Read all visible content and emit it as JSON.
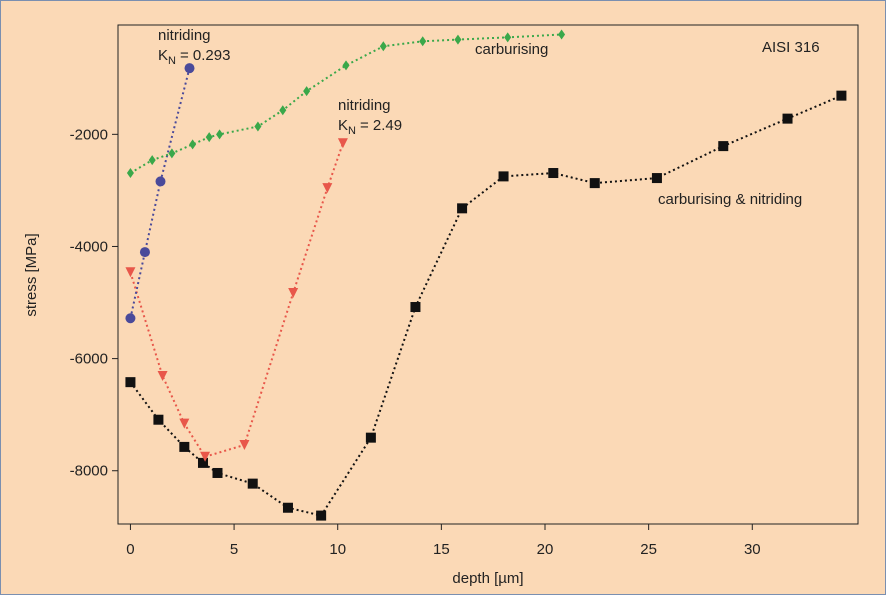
{
  "chart_data": {
    "type": "line",
    "title": "AISI 316",
    "x_label": "depth [µm]",
    "y_label": "stress [MPa]",
    "xlim": [
      -0.6,
      35.1
    ],
    "ylim": [
      -8950,
      -50
    ],
    "xticks": [
      0,
      5,
      10,
      15,
      20,
      25,
      30
    ],
    "yticks": [
      -8000,
      -6000,
      -4000,
      -2000
    ],
    "series": [
      {
        "name": "carburising & nitriding",
        "color": "#111111",
        "marker": "square",
        "x": [
          0,
          1.35,
          2.6,
          3.5,
          4.2,
          5.9,
          7.6,
          9.2,
          11.6,
          13.75,
          16.0,
          18.0,
          20.4,
          22.4,
          25.4,
          28.6,
          31.7,
          34.3
        ],
        "values": [
          -6420,
          -7090,
          -7575,
          -7860,
          -8040,
          -8230,
          -8660,
          -8800,
          -7410,
          -5080,
          -3320,
          -2750,
          -2690,
          -2870,
          -2780,
          -2210,
          -1720,
          -1310
        ]
      },
      {
        "name": "nitriding",
        "label_k": "K",
        "label_sub": "N",
        "label_rest": "= 2.49",
        "color": "#e8574a",
        "marker": "triangle-down",
        "x": [
          0,
          1.55,
          2.6,
          3.6,
          5.5,
          7.85,
          9.5,
          10.25
        ],
        "values": [
          -4460,
          -6310,
          -7160,
          -7750,
          -7540,
          -4830,
          -2960,
          -2160
        ]
      },
      {
        "name": "nitriding",
        "label_k": "K",
        "label_sub": "N",
        "label_rest": "= 0.293",
        "color": "#4a4a9a",
        "marker": "circle",
        "x": [
          0,
          0.7,
          1.45,
          2.85
        ],
        "values": [
          -5280,
          -4100,
          -2840,
          -820
        ]
      },
      {
        "name": "carburising",
        "color": "#3aa84a",
        "marker": "diamond",
        "x": [
          0,
          1.05,
          2.0,
          3.0,
          3.8,
          4.3,
          6.15,
          7.35,
          8.5,
          10.4,
          12.2,
          14.1,
          15.8,
          18.2,
          20.8
        ],
        "values": [
          -2690,
          -2460,
          -2340,
          -2180,
          -2050,
          -2000,
          -1860,
          -1570,
          -1230,
          -770,
          -430,
          -340,
          -310,
          -270,
          -220
        ]
      }
    ]
  }
}
